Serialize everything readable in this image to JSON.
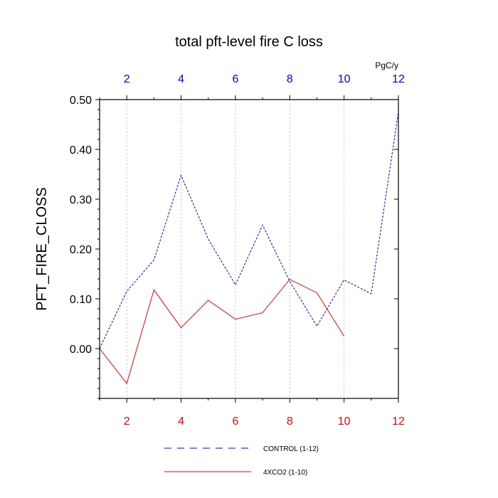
{
  "chart_data": {
    "type": "line",
    "title": "total pft-level fire C loss",
    "ylabel": "PFT_FIRE_CLOSS",
    "units_label": "PgC/y",
    "xlim": [
      1,
      12
    ],
    "ylim": [
      -0.1,
      0.5
    ],
    "x_ticks": [
      2,
      4,
      6,
      8,
      10,
      12
    ],
    "x_tick_labels": [
      "2",
      "4",
      "6",
      "8",
      "10",
      "12"
    ],
    "y_ticks": [
      0.0,
      0.1,
      0.2,
      0.3,
      0.4,
      0.5
    ],
    "y_tick_labels": [
      "0.00",
      "0.10",
      "0.20",
      "0.30",
      "0.40",
      "0.50"
    ],
    "grid": "vertical dotted lines at x ticks",
    "top_axis_color": "#0000ff",
    "bottom_axis_color": "#ff0000",
    "series": [
      {
        "name": "CONTROL (1-12)",
        "color": "#0000ff",
        "dash": "dashed",
        "x": [
          1,
          2,
          3,
          4,
          5,
          6,
          7,
          8,
          9,
          10,
          11,
          12
        ],
        "values": [
          0.0,
          0.115,
          0.178,
          0.348,
          0.22,
          0.128,
          0.248,
          0.135,
          0.045,
          0.138,
          0.11,
          0.475
        ]
      },
      {
        "name": "4XCO2 (1-10)",
        "color": "#ff0000",
        "dash": "solid",
        "x": [
          1,
          2,
          3,
          4,
          5,
          6,
          7,
          8,
          9,
          10
        ],
        "values": [
          0.0,
          -0.07,
          0.118,
          0.042,
          0.097,
          0.059,
          0.072,
          0.139,
          0.112,
          0.025
        ]
      }
    ],
    "legend_position": "bottom"
  }
}
